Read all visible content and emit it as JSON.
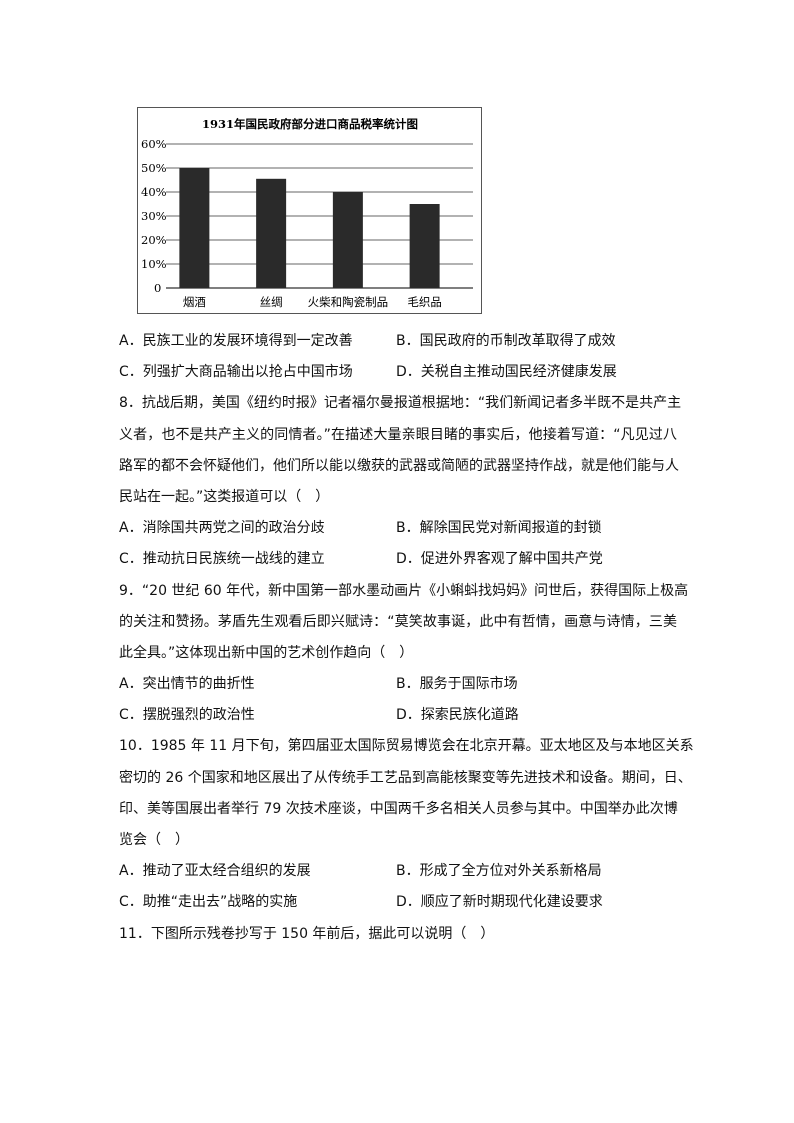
{
  "chart_data": {
    "type": "bar",
    "title": "1931年国民政府部分进口商品税率统计图",
    "categories": [
      "烟酒",
      "丝绸",
      "火柴和陶瓷制品",
      "毛织品"
    ],
    "values": [
      50,
      45.5,
      40,
      35
    ],
    "yticks": [
      "0",
      "10%",
      "20%",
      "30%",
      "40%",
      "50%",
      "60%"
    ],
    "ylim": [
      0,
      60
    ],
    "grid": true,
    "bar_color": "#2a2a2a"
  },
  "questions": [
    {
      "stem_lines": [],
      "options": [
        "A．民族工业的发展环境得到一定改善",
        "B．国民政府的币制改革取得了成效",
        "C．列强扩大商品输出以抢占中国市场",
        "D．关税自主推动国民经济健康发展"
      ]
    },
    {
      "stem_lines": [
        "8．抗战后期，美国《纽约时报》记者福尔曼报道根据地：“我们新闻记者多半既不是共产主",
        "义者，也不是共产主义的同情者。”在描述大量亲眼目睹的事实后，他接着写道：“凡见过八",
        "路军的都不会怀疑他们，他们所以能以缴获的武器或简陋的武器坚持作战，就是他们能与人",
        "民站在一起。”这类报道可以（　）"
      ],
      "options": [
        "A．消除国共两党之间的政治分歧",
        "B．解除国民党对新闻报道的封锁",
        "C．推动抗日民族统一战线的建立",
        "D．促进外界客观了解中国共产党"
      ]
    },
    {
      "stem_lines": [
        "9．“20 世纪 60 年代，新中国第一部水墨动画片《小蝌蚪找妈妈》问世后，获得国际上极高",
        "的关注和赞扬。茅盾先生观看后即兴赋诗：“莫笑故事诞，此中有哲情，画意与诗情，三美",
        "此全具。”这体现出新中国的艺术创作趋向（　）"
      ],
      "options": [
        "A．突出情节的曲折性",
        "B．服务于国际市场",
        "C．摆脱强烈的政治性",
        "D．探索民族化道路"
      ]
    },
    {
      "stem_lines": [
        "10．1985 年 11 月下旬，第四届亚太国际贸易博览会在北京开幕。亚太地区及与本地区关系",
        "密切的 26 个国家和地区展出了从传统手工艺品到高能核聚变等先进技术和设备。期间，日、",
        "印、美等国展出者举行 79 次技术座谈，中国两千多名相关人员参与其中。中国举办此次博",
        "览会（　）"
      ],
      "options": [
        "A．推动了亚太经合组织的发展",
        "B．形成了全方位对外关系新格局",
        "C．助推“走出去”战略的实施",
        "D．顺应了新时期现代化建设要求"
      ]
    },
    {
      "stem_lines": [
        "11．下图所示残卷抄写于 150 年前后，据此可以说明（　）"
      ],
      "options": []
    }
  ]
}
